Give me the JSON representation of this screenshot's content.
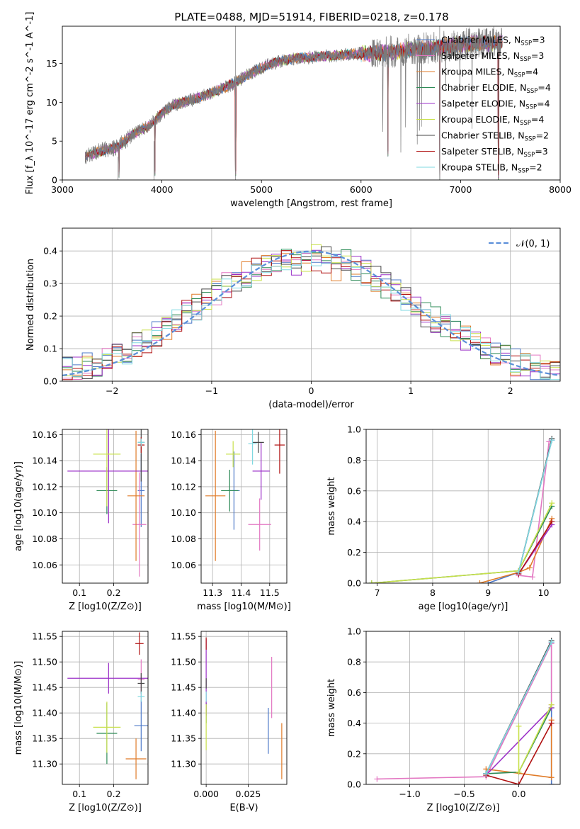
{
  "figure_title": "PLATE=0488, MJD=51914, FIBERID=0218, z=0.178",
  "colors": {
    "chabrier_miles": "#4c78c8",
    "salpeter_miles": "#e377c2",
    "kroupa_miles": "#e07b28",
    "chabrier_elodie": "#2e8b57",
    "salpeter_elodie": "#9b30c8",
    "kroupa_elodie": "#c8e04a",
    "chabrier_stelib": "#444444",
    "salpeter_stelib": "#b01010",
    "kroupa_stelib": "#7fd8e0",
    "gauss": "#5b8fd9"
  },
  "chart_data": [
    {
      "id": "spectrum",
      "type": "line",
      "xlabel": "wavelength [Angstrom, rest frame]",
      "ylabel": "Flux [f_λ 10^-17 erg cm^-2 s^-1 A^-1]",
      "xlim": [
        3000,
        8000
      ],
      "ylim": [
        0,
        19.8
      ],
      "xticks": [
        "3000",
        "4000",
        "5000",
        "6000",
        "7000",
        "8000"
      ],
      "yticks": [
        "0",
        "5",
        "10",
        "15"
      ],
      "legend_position": "right",
      "legend": [
        {
          "label": "Chabrier MILES, N_SSP=3",
          "color_key": "chabrier_miles"
        },
        {
          "label": "Salpeter MILES, N_SSP=3",
          "color_key": "salpeter_miles"
        },
        {
          "label": "Kroupa MILES, N_SSP=4",
          "color_key": "kroupa_miles"
        },
        {
          "label": "Chabrier ELODIE, N_SSP=4",
          "color_key": "chabrier_elodie"
        },
        {
          "label": "Salpeter ELODIE, N_SSP=4",
          "color_key": "salpeter_elodie"
        },
        {
          "label": "Kroupa ELODIE, N_SSP=4",
          "color_key": "kroupa_elodie"
        },
        {
          "label": "Chabrier STELIB, N_SSP=2",
          "color_key": "chabrier_stelib"
        },
        {
          "label": "Salpeter STELIB, N_SSP=3",
          "color_key": "salpeter_stelib"
        },
        {
          "label": "Kroupa STELIB, N_SSP=2",
          "color_key": "kroupa_stelib"
        }
      ],
      "continuum": [
        [
          3230,
          3.0
        ],
        [
          3400,
          3.8
        ],
        [
          3550,
          4.2
        ],
        [
          3700,
          5.8
        ],
        [
          3850,
          6.8
        ],
        [
          4000,
          8.5
        ],
        [
          4100,
          9.6
        ],
        [
          4300,
          10.3
        ],
        [
          4500,
          11.2
        ],
        [
          4700,
          12.3
        ],
        [
          4900,
          13.8
        ],
        [
          5100,
          15.0
        ],
        [
          5300,
          15.6
        ],
        [
          5500,
          15.8
        ],
        [
          5700,
          16.0
        ],
        [
          5900,
          16.2
        ],
        [
          6100,
          16.3
        ],
        [
          6300,
          16.5
        ],
        [
          6500,
          16.8
        ],
        [
          6700,
          17.0
        ],
        [
          6900,
          17.3
        ],
        [
          7100,
          17.6
        ],
        [
          7300,
          17.6
        ],
        [
          7420,
          17.8
        ]
      ],
      "dips": [
        [
          3570,
          0.3
        ],
        [
          3930,
          0.5
        ],
        [
          4740,
          0.5
        ],
        [
          6270,
          3.0
        ],
        [
          6790,
          0.0
        ],
        [
          7380,
          0.0
        ]
      ]
    },
    {
      "id": "residuals",
      "type": "histogram",
      "xlabel": "(data-model)/error",
      "ylabel": "Normed distribution",
      "xlim": [
        -2.5,
        2.5
      ],
      "ylim": [
        0,
        0.47
      ],
      "xticks": [
        "−2",
        "−1",
        "0",
        "1",
        "2"
      ],
      "yticks": [
        "0.0",
        "0.1",
        "0.2",
        "0.3",
        "0.4"
      ],
      "grid": true,
      "legend_position": "top-right",
      "legend": [
        {
          "label": "𝒩(0, 1)",
          "color_key": "gauss",
          "style": "dashed"
        }
      ],
      "bin_width": 0.1,
      "bin_start": -2.5,
      "series_keys": [
        "chabrier_miles",
        "salpeter_miles",
        "kroupa_miles",
        "chabrier_elodie",
        "salpeter_elodie",
        "kroupa_elodie",
        "chabrier_stelib",
        "salpeter_stelib",
        "kroupa_stelib"
      ]
    },
    {
      "id": "age_vs_Z",
      "type": "scatter",
      "xlabel": "Z [log10(Z/Z⊙)]",
      "ylabel": "age  [log10(age/yr)]",
      "xlim": [
        0.05,
        0.3
      ],
      "ylim": [
        10.046,
        10.164
      ],
      "xticks": [
        0.1,
        0.2
      ],
      "yticks": [
        10.06,
        10.08,
        10.1,
        10.12,
        10.14,
        10.16
      ],
      "grid": true,
      "points": [
        {
          "c": "chabrier_miles",
          "x": 0.28,
          "xerr": 0.01,
          "y": 10.117,
          "yerr": 0.028
        },
        {
          "c": "salpeter_miles",
          "x": 0.275,
          "xerr": 0.02,
          "y": 10.091,
          "yerr": 0.04
        },
        {
          "c": "kroupa_miles",
          "x": 0.265,
          "xerr": 0.025,
          "y": 10.113,
          "yerr": 0.05
        },
        {
          "c": "chabrier_elodie",
          "x": 0.18,
          "xerr": 0.03,
          "y": 10.117,
          "yerr": 0.018
        },
        {
          "c": "salpeter_elodie",
          "x": 0.185,
          "xerr": 0.12,
          "y": 10.132,
          "yerr": 0.04
        },
        {
          "c": "kroupa_elodie",
          "x": 0.18,
          "xerr": 0.04,
          "y": 10.145,
          "yerr": 0.04
        },
        {
          "c": "chabrier_stelib",
          "x": 0.28,
          "xerr": 0.01,
          "y": 10.154,
          "yerr": 0.03
        },
        {
          "c": "salpeter_stelib",
          "x": 0.28,
          "xerr": 0.01,
          "y": 10.152,
          "yerr": 0.006
        },
        {
          "c": "kroupa_stelib",
          "x": 0.28,
          "xerr": 0.01,
          "y": 10.154,
          "yerr": 0.003
        }
      ]
    },
    {
      "id": "age_vs_mass",
      "type": "scatter",
      "xlabel": "mass [log10(M/M⊙)]",
      "ylabel": "",
      "xlim": [
        11.26,
        11.56
      ],
      "ylim": [
        10.046,
        10.164
      ],
      "xticks": [
        11.3,
        11.4,
        11.5
      ],
      "yticks": [
        10.06,
        10.08,
        10.1,
        10.12,
        10.14,
        10.16
      ],
      "grid": true,
      "points": [
        {
          "c": "chabrier_miles",
          "x": 11.375,
          "xerr": 0.02,
          "y": 10.117,
          "yerr": 0.03
        },
        {
          "c": "salpeter_miles",
          "x": 11.465,
          "xerr": 0.04,
          "y": 10.091,
          "yerr": 0.02
        },
        {
          "c": "kroupa_miles",
          "x": 11.31,
          "xerr": 0.035,
          "y": 10.113,
          "yerr": 0.05
        },
        {
          "c": "chabrier_elodie",
          "x": 11.36,
          "xerr": 0.03,
          "y": 10.117,
          "yerr": 0.016
        },
        {
          "c": "salpeter_elodie",
          "x": 11.47,
          "xerr": 0.03,
          "y": 10.132,
          "yerr": 0.022
        },
        {
          "c": "kroupa_elodie",
          "x": 11.372,
          "xerr": 0.025,
          "y": 10.145,
          "yerr": 0.01
        },
        {
          "c": "chabrier_stelib",
          "x": 11.46,
          "xerr": 0.02,
          "y": 10.154,
          "yerr": 0.008
        },
        {
          "c": "salpeter_stelib",
          "x": 11.535,
          "xerr": 0.018,
          "y": 10.152,
          "yerr": 0.022
        },
        {
          "c": "kroupa_stelib",
          "x": 11.44,
          "xerr": 0.015,
          "y": 10.153,
          "yerr": 0.016
        }
      ]
    },
    {
      "id": "weight_vs_age",
      "type": "line",
      "xlabel": "age  [log10(age/yr)]",
      "ylabel": "mass weight",
      "xlim": [
        6.8,
        10.3
      ],
      "ylim": [
        0,
        1.0
      ],
      "xticks": [
        7,
        8,
        9,
        10
      ],
      "yticks": [
        "0.0",
        "0.2",
        "0.4",
        "0.6",
        "0.8",
        "1.0"
      ],
      "grid": true,
      "series": [
        {
          "c": "chabrier_miles",
          "pts": [
            [
              9.0,
              0.0
            ],
            [
              9.55,
              0.07
            ],
            [
              10.15,
              0.93
            ]
          ]
        },
        {
          "c": "salpeter_miles",
          "pts": [
            [
              9.55,
              0.05
            ],
            [
              9.8,
              0.04
            ],
            [
              10.1,
              0.92
            ]
          ]
        },
        {
          "c": "kroupa_miles",
          "pts": [
            [
              8.85,
              0.0
            ],
            [
              9.55,
              0.07
            ],
            [
              9.75,
              0.1
            ],
            [
              10.15,
              0.42
            ]
          ]
        },
        {
          "c": "chabrier_elodie",
          "pts": [
            [
              6.9,
              0.0
            ],
            [
              9.55,
              0.08
            ],
            [
              10.15,
              0.5
            ]
          ]
        },
        {
          "c": "salpeter_elodie",
          "pts": [
            [
              9.55,
              0.06
            ],
            [
              10.15,
              0.38
            ]
          ]
        },
        {
          "c": "kroupa_elodie",
          "pts": [
            [
              6.9,
              0.0
            ],
            [
              9.55,
              0.08
            ],
            [
              10.15,
              0.52
            ]
          ]
        },
        {
          "c": "chabrier_stelib",
          "pts": [
            [
              9.55,
              0.07
            ],
            [
              10.15,
              0.94
            ]
          ]
        },
        {
          "c": "salpeter_stelib",
          "pts": [
            [
              9.55,
              0.06
            ],
            [
              10.15,
              0.4
            ]
          ]
        },
        {
          "c": "kroupa_stelib",
          "pts": [
            [
              9.55,
              0.07
            ],
            [
              10.15,
              0.93
            ]
          ]
        }
      ]
    },
    {
      "id": "mass_vs_Z",
      "type": "scatter",
      "xlabel": "Z [log10(Z/Z⊙)]",
      "ylabel": "mass [log10(M/M⊙)]",
      "xlim": [
        0.05,
        0.3
      ],
      "ylim": [
        11.26,
        11.56
      ],
      "xticks": [
        0.1,
        0.2
      ],
      "yticks": [
        11.3,
        11.35,
        11.4,
        11.45,
        11.5,
        11.55
      ],
      "grid": true,
      "points": [
        {
          "c": "chabrier_miles",
          "x": 0.28,
          "xerr": 0.02,
          "y": 11.375,
          "yerr": 0.05
        },
        {
          "c": "salpeter_miles",
          "x": 0.28,
          "xerr": 0.01,
          "y": 11.465,
          "yerr": 0.04
        },
        {
          "c": "kroupa_miles",
          "x": 0.265,
          "xerr": 0.03,
          "y": 11.31,
          "yerr": 0.04
        },
        {
          "c": "chabrier_elodie",
          "x": 0.18,
          "xerr": 0.03,
          "y": 11.36,
          "yerr": 0.06
        },
        {
          "c": "salpeter_elodie",
          "x": 0.185,
          "xerr": 0.12,
          "y": 11.468,
          "yerr": 0.03
        },
        {
          "c": "kroupa_elodie",
          "x": 0.18,
          "xerr": 0.04,
          "y": 11.372,
          "yerr": 0.05
        },
        {
          "c": "chabrier_stelib",
          "x": 0.28,
          "xerr": 0.01,
          "y": 11.458,
          "yerr": 0.02
        },
        {
          "c": "salpeter_stelib",
          "x": 0.275,
          "xerr": 0.012,
          "y": 11.536,
          "yerr": 0.022
        },
        {
          "c": "kroupa_stelib",
          "x": 0.28,
          "xerr": 0.01,
          "y": 11.432,
          "yerr": 0.01
        }
      ]
    },
    {
      "id": "mass_vs_ebv",
      "type": "scatter",
      "xlabel": "E(B-V)",
      "ylabel": "",
      "xlim": [
        -0.003,
        0.048
      ],
      "ylim": [
        11.26,
        11.56
      ],
      "xticks": [
        "0.000",
        "0.025"
      ],
      "xtick_values": [
        0.0,
        0.025
      ],
      "yticks": [
        11.3,
        11.35,
        11.4,
        11.45,
        11.5,
        11.55
      ],
      "grid": true,
      "points": [
        {
          "c": "chabrier_miles",
          "x": 0.037,
          "y": 11.365,
          "yerr": 0.045
        },
        {
          "c": "salpeter_miles",
          "x": 0.039,
          "y": 11.45,
          "yerr": 0.06
        },
        {
          "c": "kroupa_miles",
          "x": 0.045,
          "y": 11.325,
          "yerr": 0.055
        },
        {
          "c": "chabrier_elodie",
          "x": 0.0,
          "y": 11.4,
          "yerr": 0.02
        },
        {
          "c": "salpeter_elodie",
          "x": 0.0,
          "y": 11.47,
          "yerr": 0.075
        },
        {
          "c": "kroupa_elodie",
          "x": 0.0,
          "y": 11.372,
          "yerr": 0.045
        },
        {
          "c": "chabrier_stelib",
          "x": 0.0,
          "y": 11.458,
          "yerr": 0.01
        },
        {
          "c": "salpeter_stelib",
          "x": 0.0,
          "y": 11.536,
          "yerr": 0.012
        },
        {
          "c": "kroupa_stelib",
          "x": 0.0,
          "y": 11.432,
          "yerr": 0.01
        }
      ]
    },
    {
      "id": "weight_vs_Z",
      "type": "line",
      "xlabel": "Z [log10(Z/Z⊙)]",
      "ylabel": "mass weight",
      "xlim": [
        -1.4,
        0.38
      ],
      "ylim": [
        0,
        1.0
      ],
      "xticks": [
        "−1.0",
        "−0.5",
        "0.0"
      ],
      "xtick_values": [
        -1.0,
        -0.5,
        0.0
      ],
      "yticks": [
        "0.0",
        "0.2",
        "0.4",
        "0.6",
        "0.8",
        "1.0"
      ],
      "grid": true,
      "series": [
        {
          "c": "chabrier_miles",
          "pts": [
            [
              -0.3,
              0.07
            ],
            [
              0.3,
              0.93
            ],
            [
              0.3,
              0.0
            ]
          ]
        },
        {
          "c": "salpeter_miles",
          "pts": [
            [
              -1.3,
              0.035
            ],
            [
              -0.3,
              0.05
            ],
            [
              0.3,
              0.92
            ],
            [
              0.3,
              0.52
            ]
          ]
        },
        {
          "c": "kroupa_miles",
          "pts": [
            [
              -0.3,
              0.1
            ],
            [
              0.3,
              0.045
            ],
            [
              0.3,
              0.42
            ]
          ]
        },
        {
          "c": "chabrier_elodie",
          "pts": [
            [
              -0.3,
              0.07
            ],
            [
              0.0,
              0.08
            ],
            [
              0.3,
              0.5
            ]
          ]
        },
        {
          "c": "salpeter_elodie",
          "pts": [
            [
              -0.3,
              0.06
            ],
            [
              0.3,
              0.5
            ]
          ]
        },
        {
          "c": "kroupa_elodie",
          "pts": [
            [
              0.0,
              0.38
            ],
            [
              0.0,
              0.08
            ],
            [
              0.3,
              0.52
            ]
          ]
        },
        {
          "c": "chabrier_stelib",
          "pts": [
            [
              -0.3,
              0.07
            ],
            [
              0.3,
              0.94
            ]
          ]
        },
        {
          "c": "salpeter_stelib",
          "pts": [
            [
              -0.3,
              0.06
            ],
            [
              0.0,
              0.0
            ],
            [
              0.3,
              0.4
            ]
          ]
        },
        {
          "c": "kroupa_stelib",
          "pts": [
            [
              -0.3,
              0.07
            ],
            [
              0.3,
              0.93
            ]
          ]
        }
      ]
    }
  ]
}
